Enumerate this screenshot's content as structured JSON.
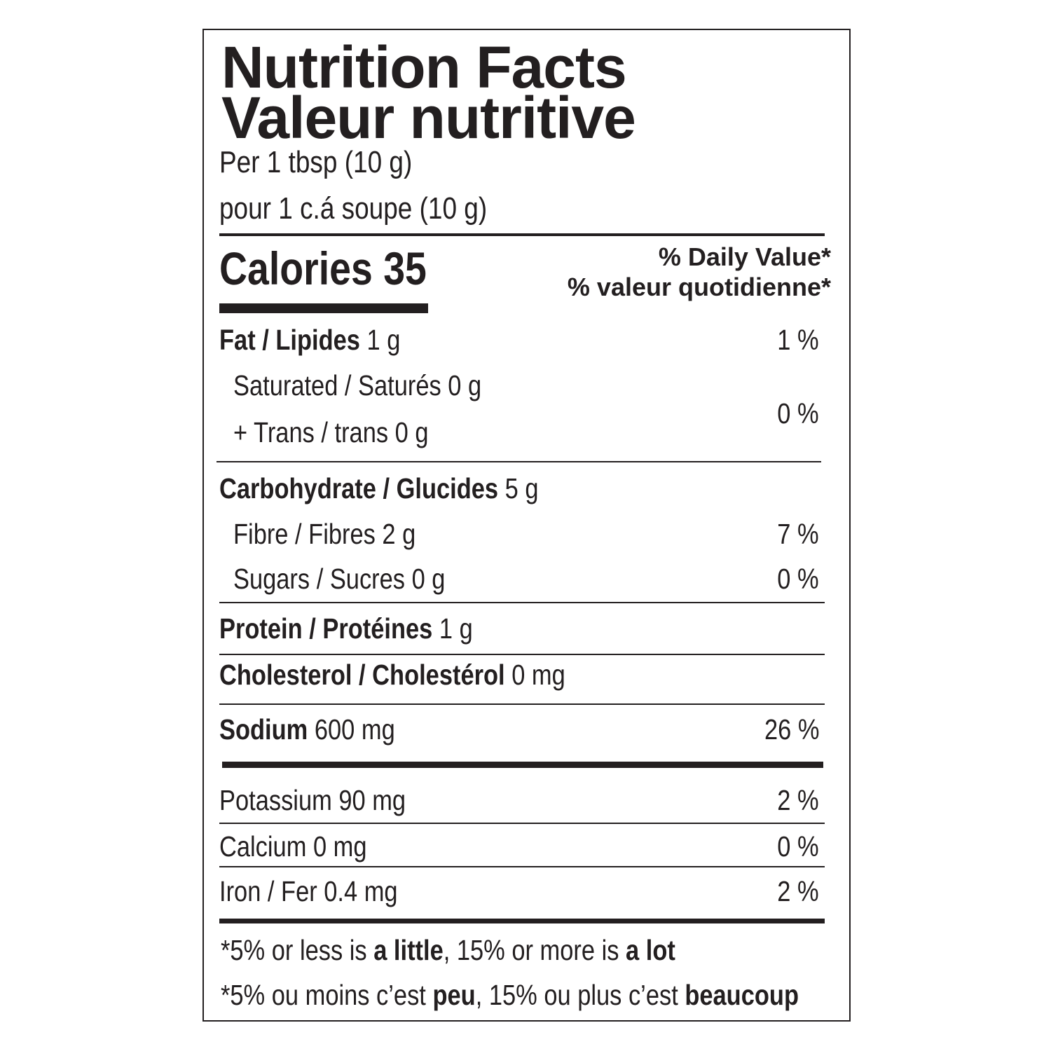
{
  "title_en": "Nutrition Facts",
  "title_fr": "Valeur nutritive",
  "serving_en": "Per 1 tbsp (10 g)",
  "serving_fr": "pour 1 c.á soupe (10 g)",
  "calories_label": "Calories",
  "calories_value": "35",
  "dv_header_en": "% Daily Value*",
  "dv_header_fr": "% valeur quotidienne*",
  "rows": {
    "fat": {
      "bold": "Fat / Lipides",
      "amount": " 1 g",
      "dv": "1 %"
    },
    "saturated": {
      "label": "Saturated / Saturés 0 g"
    },
    "trans": {
      "label": "+ Trans / trans 0 g"
    },
    "sat_trans_dv": "0 %",
    "carbohydrate": {
      "bold": "Carbohydrate / Glucides",
      "amount": " 5 g"
    },
    "fibre": {
      "label": "Fibre / Fibres 2 g",
      "dv": "7 %"
    },
    "sugars": {
      "label": "Sugars / Sucres 0 g",
      "dv": "0 %"
    },
    "protein": {
      "bold": "Protein / Protéines",
      "amount": " 1 g"
    },
    "cholesterol": {
      "bold": "Cholesterol / Cholestérol",
      "amount": " 0 mg"
    },
    "sodium": {
      "bold": "Sodium",
      "amount": " 600 mg",
      "dv": "26 %"
    },
    "potassium": {
      "label": "Potassium 90 mg",
      "dv": "2 %"
    },
    "calcium": {
      "label": "Calcium 0 mg",
      "dv": "0 %"
    },
    "iron": {
      "label": "Iron / Fer 0.4 mg",
      "dv": "2 %"
    }
  },
  "footnote_en": [
    "*5% or less is ",
    "a little",
    ", 15% or more is ",
    "a lot"
  ],
  "footnote_fr": [
    "*5% ou moins c’est ",
    "peu",
    ", 15% ou plus c’est ",
    "beaucoup"
  ]
}
